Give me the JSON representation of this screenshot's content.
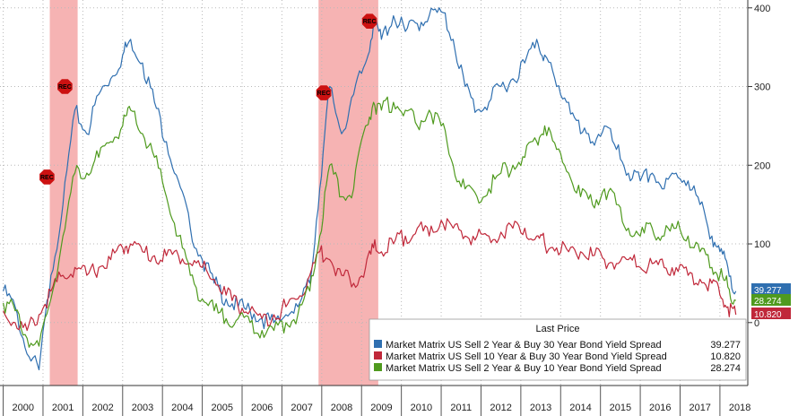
{
  "chart_data": {
    "type": "line",
    "title": "",
    "xlabel": "",
    "ylabel": "",
    "x_range": [
      1999.92,
      2018.7
    ],
    "ylim": [
      -80,
      410
    ],
    "y_ticks": [
      0,
      100,
      200,
      300,
      400
    ],
    "x_tick_labels": [
      "2000",
      "2001",
      "2002",
      "2003",
      "2004",
      "2005",
      "2006",
      "2007",
      "2008",
      "2009",
      "2010",
      "2011",
      "2012",
      "2013",
      "2014",
      "2015",
      "2016",
      "2017",
      "2018"
    ],
    "grid": true,
    "legend_position": "bottom-right",
    "legend_title": "Last Price",
    "recessions": [
      {
        "start": 2001.17,
        "end": 2001.87
      },
      {
        "start": 2007.92,
        "end": 2009.42
      }
    ],
    "rec_markers": [
      {
        "x": 2001.1,
        "y": 185,
        "label": "REC"
      },
      {
        "x": 2001.55,
        "y": 300,
        "label": "REC"
      },
      {
        "x": 2008.05,
        "y": 292,
        "label": "REC"
      },
      {
        "x": 2009.2,
        "y": 383,
        "label": "REC"
      }
    ],
    "series": [
      {
        "name": "Market Matrix US Sell 2 Year & Buy 30 Year Bond Yield Spread",
        "last": "39.277",
        "color": "#2f6fb0",
        "x": [
          2000.0,
          2000.3,
          2000.6,
          2000.9,
          2001.2,
          2001.5,
          2001.8,
          2002.1,
          2002.4,
          2002.7,
          2003.0,
          2003.2,
          2003.5,
          2003.8,
          2004.1,
          2004.4,
          2004.7,
          2005.0,
          2005.3,
          2005.6,
          2005.9,
          2006.2,
          2006.5,
          2006.8,
          2007.1,
          2007.4,
          2007.7,
          2007.95,
          2008.2,
          2008.5,
          2008.8,
          2009.1,
          2009.3,
          2009.5,
          2009.8,
          2010.1,
          2010.4,
          2010.7,
          2011.0,
          2011.3,
          2011.6,
          2011.9,
          2012.2,
          2012.5,
          2012.8,
          2013.1,
          2013.4,
          2013.6,
          2013.9,
          2014.2,
          2014.5,
          2014.8,
          2015.1,
          2015.4,
          2015.7,
          2016.0,
          2016.3,
          2016.6,
          2016.9,
          2017.2,
          2017.5,
          2017.8,
          2018.0,
          2018.2,
          2018.4
        ],
        "y": [
          40,
          20,
          -40,
          -60,
          60,
          150,
          270,
          240,
          290,
          310,
          340,
          360,
          330,
          280,
          230,
          180,
          120,
          80,
          50,
          30,
          20,
          15,
          5,
          0,
          10,
          20,
          50,
          170,
          300,
          240,
          290,
          330,
          380,
          360,
          390,
          370,
          380,
          390,
          395,
          360,
          300,
          270,
          280,
          300,
          310,
          330,
          360,
          340,
          300,
          280,
          240,
          230,
          250,
          220,
          190,
          180,
          190,
          170,
          190,
          180,
          150,
          110,
          90,
          70,
          40
        ]
      },
      {
        "name": "Market Matrix US Sell 10 Year & Buy 30 Year Bond Yield Spread",
        "last": "10.820",
        "color": "#c0283a",
        "x": [
          2000.0,
          2000.3,
          2000.6,
          2000.9,
          2001.2,
          2001.5,
          2001.8,
          2002.1,
          2002.4,
          2002.7,
          2003.0,
          2003.2,
          2003.5,
          2003.8,
          2004.1,
          2004.4,
          2004.7,
          2005.0,
          2005.3,
          2005.6,
          2005.9,
          2006.2,
          2006.5,
          2006.8,
          2007.1,
          2007.4,
          2007.7,
          2007.95,
          2008.2,
          2008.5,
          2008.8,
          2009.1,
          2009.3,
          2009.5,
          2009.8,
          2010.1,
          2010.4,
          2010.7,
          2011.0,
          2011.3,
          2011.6,
          2011.9,
          2012.2,
          2012.5,
          2012.8,
          2013.1,
          2013.4,
          2013.6,
          2013.9,
          2014.2,
          2014.5,
          2014.8,
          2015.1,
          2015.4,
          2015.7,
          2016.0,
          2016.3,
          2016.6,
          2016.9,
          2017.2,
          2017.5,
          2017.8,
          2018.0,
          2018.2,
          2018.4
        ],
        "y": [
          15,
          0,
          -10,
          10,
          40,
          60,
          70,
          60,
          70,
          80,
          95,
          100,
          90,
          85,
          85,
          85,
          75,
          70,
          55,
          35,
          20,
          15,
          5,
          10,
          20,
          30,
          60,
          90,
          80,
          60,
          50,
          70,
          95,
          90,
          100,
          110,
          120,
          110,
          130,
          120,
          110,
          110,
          110,
          115,
          120,
          120,
          110,
          100,
          95,
          90,
          90,
          85,
          80,
          75,
          80,
          70,
          75,
          70,
          70,
          60,
          55,
          50,
          35,
          20,
          10
        ]
      },
      {
        "name": "Market Matrix US Sell 2 Year & Buy 10 Year Bond Yield Spread",
        "last": "28.274",
        "color": "#4f9a1e",
        "x": [
          2000.0,
          2000.3,
          2000.6,
          2000.9,
          2001.2,
          2001.5,
          2001.8,
          2002.1,
          2002.4,
          2002.7,
          2003.0,
          2003.2,
          2003.5,
          2003.8,
          2004.1,
          2004.4,
          2004.7,
          2005.0,
          2005.3,
          2005.6,
          2005.9,
          2006.2,
          2006.5,
          2006.8,
          2007.1,
          2007.4,
          2007.7,
          2007.95,
          2008.2,
          2008.5,
          2008.8,
          2009.1,
          2009.3,
          2009.5,
          2009.8,
          2010.1,
          2010.4,
          2010.7,
          2011.0,
          2011.3,
          2011.6,
          2011.9,
          2012.2,
          2012.5,
          2012.8,
          2013.1,
          2013.4,
          2013.6,
          2013.9,
          2014.2,
          2014.5,
          2014.8,
          2015.1,
          2015.4,
          2015.7,
          2016.0,
          2016.3,
          2016.6,
          2016.9,
          2017.2,
          2017.5,
          2017.8,
          2018.0,
          2018.2,
          2018.4
        ],
        "y": [
          25,
          15,
          -20,
          -30,
          30,
          110,
          190,
          190,
          210,
          230,
          250,
          270,
          240,
          210,
          160,
          110,
          60,
          30,
          15,
          5,
          5,
          0,
          -10,
          -10,
          0,
          10,
          40,
          110,
          200,
          160,
          170,
          250,
          280,
          270,
          280,
          270,
          250,
          270,
          250,
          200,
          170,
          160,
          170,
          190,
          200,
          210,
          230,
          250,
          220,
          190,
          160,
          150,
          170,
          150,
          120,
          110,
          120,
          110,
          120,
          110,
          90,
          70,
          60,
          45,
          28
        ]
      }
    ]
  },
  "colors": {
    "recession_band": "#f4a6a6",
    "rec_marker": "#cc1111",
    "grid": "#b8b8b8"
  }
}
